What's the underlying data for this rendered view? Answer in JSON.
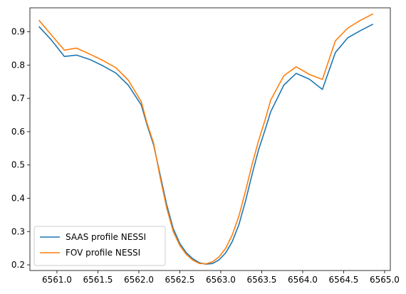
{
  "chart_data": {
    "type": "line",
    "title": "",
    "xlabel": "",
    "ylabel": "",
    "xlim": [
      6560.67,
      6565.07
    ],
    "ylim": [
      0.183,
      0.972
    ],
    "grid": false,
    "legend_position": "lower-left",
    "x_ticks": [
      {
        "value": 6561.0,
        "label": "6561.0"
      },
      {
        "value": 6561.5,
        "label": "6561.5"
      },
      {
        "value": 6562.0,
        "label": "6562.0"
      },
      {
        "value": 6562.5,
        "label": "6562.5"
      },
      {
        "value": 6563.0,
        "label": "6563.0"
      },
      {
        "value": 6563.5,
        "label": "6563.5"
      },
      {
        "value": 6564.0,
        "label": "6564.0"
      },
      {
        "value": 6564.5,
        "label": "6564.5"
      },
      {
        "value": 6565.0,
        "label": "6565.0"
      }
    ],
    "y_ticks": [
      {
        "value": 0.2,
        "label": "0.2"
      },
      {
        "value": 0.3,
        "label": "0.3"
      },
      {
        "value": 0.4,
        "label": "0.4"
      },
      {
        "value": 0.5,
        "label": "0.5"
      },
      {
        "value": 0.6,
        "label": "0.6"
      },
      {
        "value": 0.7,
        "label": "0.7"
      },
      {
        "value": 0.8,
        "label": "0.8"
      },
      {
        "value": 0.9,
        "label": "0.9"
      }
    ],
    "series": [
      {
        "name": "SAAS profile NESSI",
        "color": "#1f77b4",
        "x": [
          6560.78,
          6560.93,
          6561.09,
          6561.24,
          6561.4,
          6561.56,
          6561.72,
          6561.87,
          6562.03,
          6562.1,
          6562.18,
          6562.26,
          6562.34,
          6562.42,
          6562.5,
          6562.58,
          6562.66,
          6562.74,
          6562.82,
          6562.9,
          6562.98,
          6563.06,
          6563.14,
          6563.22,
          6563.3,
          6563.38,
          6563.46,
          6563.54,
          6563.61,
          6563.77,
          6563.92,
          6564.08,
          6564.24,
          6564.4,
          6564.55,
          6564.7,
          6564.86
        ],
        "y": [
          0.916,
          0.876,
          0.826,
          0.83,
          0.817,
          0.798,
          0.776,
          0.74,
          0.68,
          0.62,
          0.56,
          0.47,
          0.38,
          0.308,
          0.264,
          0.236,
          0.218,
          0.206,
          0.202,
          0.204,
          0.215,
          0.236,
          0.27,
          0.32,
          0.39,
          0.47,
          0.545,
          0.605,
          0.66,
          0.74,
          0.775,
          0.758,
          0.727,
          0.838,
          0.882,
          0.903,
          0.923
        ]
      },
      {
        "name": "FOV profile NESSI",
        "color": "#ff7f0e",
        "x": [
          6560.78,
          6560.93,
          6561.09,
          6561.24,
          6561.4,
          6561.56,
          6561.72,
          6561.87,
          6562.03,
          6562.1,
          6562.18,
          6562.26,
          6562.34,
          6562.42,
          6562.5,
          6562.58,
          6562.66,
          6562.74,
          6562.82,
          6562.9,
          6562.98,
          6563.06,
          6563.14,
          6563.22,
          6563.3,
          6563.38,
          6563.46,
          6563.54,
          6563.61,
          6563.77,
          6563.92,
          6564.08,
          6564.24,
          6564.4,
          6564.55,
          6564.7,
          6564.86
        ],
        "y": [
          0.935,
          0.891,
          0.845,
          0.851,
          0.833,
          0.814,
          0.792,
          0.755,
          0.69,
          0.625,
          0.565,
          0.462,
          0.37,
          0.3,
          0.258,
          0.231,
          0.214,
          0.204,
          0.203,
          0.209,
          0.224,
          0.25,
          0.29,
          0.346,
          0.42,
          0.5,
          0.572,
          0.635,
          0.695,
          0.768,
          0.795,
          0.772,
          0.757,
          0.873,
          0.911,
          0.934,
          0.954
        ]
      }
    ]
  }
}
